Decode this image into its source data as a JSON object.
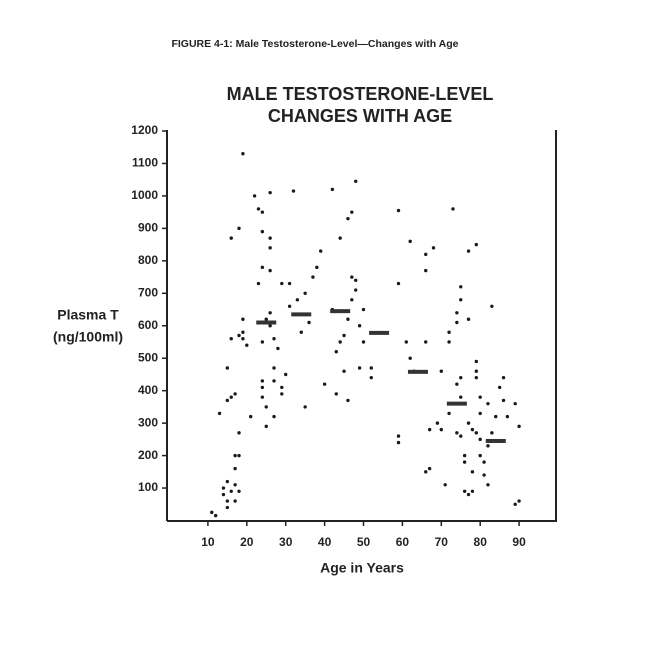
{
  "chart_data": {
    "type": "scatter",
    "caption": "FIGURE 4-1: Male Testosterone-Level—Changes with Age",
    "title": [
      "MALE TESTOSTERONE-LEVEL",
      "CHANGES WITH AGE"
    ],
    "y_label": [
      "Plasma T",
      "(ng/100ml)"
    ],
    "x_label": "Age in Years",
    "xlim": [
      0,
      100
    ],
    "ylim": [
      0,
      1200
    ],
    "xticks": [
      10,
      20,
      30,
      40,
      50,
      60,
      70,
      80,
      90
    ],
    "yticks": [
      100,
      200,
      300,
      400,
      500,
      600,
      700,
      800,
      900,
      1000,
      1100,
      1200
    ],
    "series": [
      {
        "marker": "dot",
        "color": "#1a1a1a",
        "x": [
          11,
          12,
          13,
          14,
          14,
          15,
          15,
          15,
          15,
          15,
          16,
          16,
          16,
          16,
          17,
          17,
          17,
          17,
          17,
          18,
          18,
          18,
          18,
          18,
          19,
          19,
          19,
          19,
          20,
          21,
          22,
          23,
          23,
          24,
          24,
          24,
          24,
          24,
          24,
          24,
          25,
          25,
          25,
          26,
          26,
          26,
          26,
          26,
          26,
          27,
          27,
          27,
          27,
          28,
          29,
          29,
          29,
          30,
          32,
          31,
          31,
          33,
          34,
          35,
          35,
          36,
          37,
          38,
          39,
          40,
          42,
          42,
          43,
          43,
          44,
          44,
          45,
          45,
          46,
          46,
          46,
          47,
          47,
          47,
          48,
          48,
          48,
          49,
          49,
          50,
          50,
          52,
          52,
          59,
          59,
          59,
          59,
          61,
          62,
          62,
          63,
          66,
          66,
          66,
          66,
          67,
          67,
          68,
          69,
          70,
          70,
          71,
          72,
          72,
          72,
          73,
          74,
          74,
          74,
          74,
          75,
          75,
          75,
          75,
          75,
          76,
          76,
          76,
          77,
          77,
          77,
          77,
          78,
          78,
          78,
          79,
          79,
          79,
          79,
          79,
          80,
          80,
          80,
          80,
          81,
          81,
          82,
          82,
          82,
          83,
          83,
          84,
          85,
          86,
          86,
          87,
          89,
          89,
          90,
          90
        ],
        "values": [
          25,
          15,
          330,
          80,
          100,
          470,
          120,
          60,
          40,
          370,
          380,
          90,
          870,
          560,
          390,
          200,
          160,
          110,
          60,
          200,
          570,
          900,
          270,
          90,
          1130,
          620,
          560,
          580,
          540,
          320,
          1000,
          730,
          960,
          550,
          780,
          950,
          890,
          430,
          410,
          380,
          350,
          290,
          620,
          1010,
          870,
          840,
          770,
          640,
          600,
          560,
          470,
          430,
          320,
          530,
          730,
          390,
          410,
          450,
          1015,
          730,
          660,
          680,
          580,
          700,
          350,
          610,
          750,
          780,
          830,
          420,
          1020,
          650,
          520,
          390,
          870,
          550,
          570,
          460,
          370,
          620,
          930,
          950,
          680,
          750,
          1045,
          740,
          710,
          600,
          470,
          650,
          550,
          440,
          470,
          955,
          730,
          260,
          240,
          550,
          860,
          500,
          460,
          820,
          770,
          550,
          150,
          160,
          280,
          840,
          300,
          460,
          280,
          110,
          330,
          550,
          580,
          960,
          640,
          610,
          420,
          270,
          680,
          720,
          440,
          380,
          260,
          200,
          180,
          90,
          830,
          620,
          300,
          80,
          280,
          150,
          90,
          850,
          490,
          460,
          440,
          270,
          380,
          330,
          250,
          200,
          180,
          140,
          360,
          230,
          110,
          660,
          270,
          320,
          410,
          440,
          370,
          320,
          360,
          50,
          60,
          290
        ]
      },
      {
        "marker": "dash",
        "color": "#333333",
        "x": [
          25,
          34,
          44,
          54,
          64,
          74,
          84
        ],
        "values": [
          610,
          635,
          645,
          578,
          458,
          360,
          245
        ]
      }
    ]
  }
}
